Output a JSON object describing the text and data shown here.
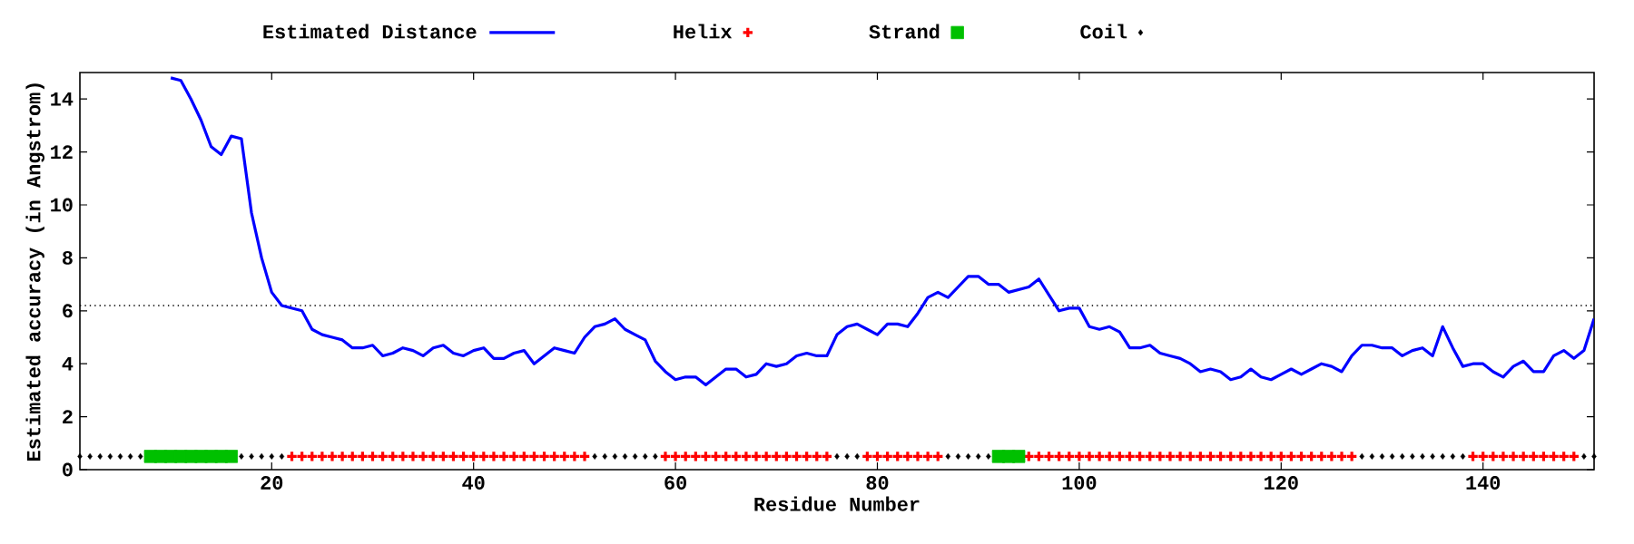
{
  "chart_data": {
    "type": "line",
    "xlabel": "Residue Number",
    "ylabel": "Estimated accuracy (in Angstrom)",
    "xlim": [
      1,
      151
    ],
    "ylim": [
      0,
      15
    ],
    "xticks": [
      20,
      40,
      60,
      80,
      100,
      120,
      140
    ],
    "yticks": [
      0,
      2,
      4,
      6,
      8,
      10,
      12,
      14
    ],
    "legend": "top",
    "grid": false,
    "ref_lines": [
      {
        "axis": "y",
        "value": 6.2,
        "color": "#000000",
        "line_style": "dotted"
      }
    ],
    "series": [
      {
        "name": "Estimated Distance",
        "color": "#0000ff",
        "line_style": "solid",
        "x": [
          10,
          11,
          12,
          13,
          14,
          15,
          16,
          17,
          18,
          19,
          20,
          21,
          22,
          23,
          24,
          25,
          26,
          27,
          28,
          29,
          30,
          31,
          32,
          33,
          34,
          35,
          36,
          37,
          38,
          39,
          40,
          41,
          42,
          43,
          44,
          45,
          46,
          47,
          48,
          49,
          50,
          51,
          52,
          53,
          54,
          55,
          56,
          57,
          58,
          59,
          60,
          61,
          62,
          63,
          64,
          65,
          66,
          67,
          68,
          69,
          70,
          71,
          72,
          73,
          74,
          75,
          76,
          77,
          78,
          79,
          80,
          81,
          82,
          83,
          84,
          85,
          86,
          87,
          88,
          89,
          90,
          91,
          92,
          93,
          94,
          95,
          96,
          97,
          98,
          99,
          100,
          101,
          102,
          103,
          104,
          105,
          106,
          107,
          108,
          109,
          110,
          111,
          112,
          113,
          114,
          115,
          116,
          117,
          118,
          119,
          120,
          121,
          122,
          123,
          124,
          125,
          126,
          127,
          128,
          129,
          130,
          131,
          132,
          133,
          134,
          135,
          136,
          137,
          138,
          139,
          140,
          141,
          142,
          143,
          144,
          145,
          146,
          147,
          148,
          149,
          150,
          151
        ],
        "values": [
          14.8,
          14.7,
          14.0,
          13.2,
          12.2,
          11.9,
          12.6,
          12.5,
          9.7,
          8.0,
          6.7,
          6.2,
          6.1,
          6.0,
          5.3,
          5.1,
          5.0,
          4.9,
          4.6,
          4.6,
          4.7,
          4.3,
          4.4,
          4.6,
          4.5,
          4.3,
          4.6,
          4.7,
          4.4,
          4.3,
          4.5,
          4.6,
          4.2,
          4.2,
          4.4,
          4.5,
          4.0,
          4.3,
          4.6,
          4.5,
          4.4,
          5.0,
          5.4,
          5.5,
          5.7,
          5.3,
          5.1,
          4.9,
          4.1,
          3.7,
          3.4,
          3.5,
          3.5,
          3.2,
          3.5,
          3.8,
          3.8,
          3.5,
          3.6,
          4.0,
          3.9,
          4.0,
          4.3,
          4.4,
          4.3,
          4.3,
          5.1,
          5.4,
          5.5,
          5.3,
          5.1,
          5.5,
          5.5,
          5.4,
          5.9,
          6.5,
          6.7,
          6.5,
          6.9,
          7.3,
          7.3,
          7.0,
          7.0,
          6.7,
          6.8,
          6.9,
          7.2,
          6.6,
          6.0,
          6.1,
          6.1,
          5.4,
          5.3,
          5.4,
          5.2,
          4.6,
          4.6,
          4.7,
          4.4,
          4.3,
          4.2,
          4.0,
          3.7,
          3.8,
          3.7,
          3.4,
          3.5,
          3.8,
          3.5,
          3.4,
          3.6,
          3.8,
          3.6,
          3.8,
          4.0,
          3.9,
          3.7,
          4.3,
          4.7,
          4.7,
          4.6,
          4.6,
          4.3,
          4.5,
          4.6,
          4.3,
          5.4,
          4.6,
          3.9,
          4.0,
          4.0,
          3.7,
          3.5,
          3.9,
          4.1,
          3.7,
          3.7,
          4.3,
          4.5,
          4.2,
          4.5,
          5.7
        ]
      },
      {
        "name": "Helix",
        "type": "scatter",
        "color": "#ff0000",
        "marker": "cross",
        "x": [
          22,
          23,
          24,
          25,
          26,
          27,
          28,
          29,
          30,
          31,
          32,
          33,
          34,
          35,
          36,
          37,
          38,
          39,
          40,
          41,
          42,
          43,
          44,
          45,
          46,
          47,
          48,
          49,
          50,
          51,
          59,
          60,
          61,
          62,
          63,
          64,
          65,
          66,
          67,
          68,
          69,
          70,
          71,
          72,
          73,
          74,
          75,
          79,
          80,
          81,
          82,
          83,
          84,
          85,
          86,
          95,
          96,
          97,
          98,
          99,
          100,
          101,
          102,
          103,
          104,
          105,
          106,
          107,
          108,
          109,
          110,
          111,
          112,
          113,
          114,
          115,
          116,
          117,
          118,
          119,
          120,
          121,
          122,
          123,
          124,
          125,
          126,
          127,
          139,
          140,
          141,
          142,
          143,
          144,
          145,
          146,
          147,
          148,
          149
        ],
        "values": [
          0.5,
          0.5,
          0.5,
          0.5,
          0.5,
          0.5,
          0.5,
          0.5,
          0.5,
          0.5,
          0.5,
          0.5,
          0.5,
          0.5,
          0.5,
          0.5,
          0.5,
          0.5,
          0.5,
          0.5,
          0.5,
          0.5,
          0.5,
          0.5,
          0.5,
          0.5,
          0.5,
          0.5,
          0.5,
          0.5,
          0.5,
          0.5,
          0.5,
          0.5,
          0.5,
          0.5,
          0.5,
          0.5,
          0.5,
          0.5,
          0.5,
          0.5,
          0.5,
          0.5,
          0.5,
          0.5,
          0.5,
          0.5,
          0.5,
          0.5,
          0.5,
          0.5,
          0.5,
          0.5,
          0.5,
          0.5,
          0.5,
          0.5,
          0.5,
          0.5,
          0.5,
          0.5,
          0.5,
          0.5,
          0.5,
          0.5,
          0.5,
          0.5,
          0.5,
          0.5,
          0.5,
          0.5,
          0.5,
          0.5,
          0.5,
          0.5,
          0.5,
          0.5,
          0.5,
          0.5,
          0.5,
          0.5,
          0.5,
          0.5,
          0.5,
          0.5,
          0.5,
          0.5,
          0.5,
          0.5,
          0.5,
          0.5,
          0.5,
          0.5,
          0.5,
          0.5,
          0.5,
          0.5,
          0.5
        ]
      },
      {
        "name": "Strand",
        "type": "scatter",
        "color": "#00c000",
        "marker": "square",
        "x": [
          8,
          9,
          10,
          11,
          12,
          13,
          14,
          15,
          16,
          92,
          93,
          94
        ],
        "values": [
          0.5,
          0.5,
          0.5,
          0.5,
          0.5,
          0.5,
          0.5,
          0.5,
          0.5,
          0.5,
          0.5,
          0.5
        ]
      },
      {
        "name": "Coil",
        "type": "scatter",
        "color": "#000000",
        "marker": "diamond",
        "x": [
          1,
          2,
          3,
          4,
          5,
          6,
          7,
          17,
          18,
          19,
          20,
          21,
          52,
          53,
          54,
          55,
          56,
          57,
          58,
          76,
          77,
          78,
          87,
          88,
          89,
          90,
          91,
          128,
          129,
          130,
          131,
          132,
          133,
          134,
          135,
          136,
          137,
          138,
          150,
          151
        ],
        "values": [
          0.5,
          0.5,
          0.5,
          0.5,
          0.5,
          0.5,
          0.5,
          0.5,
          0.5,
          0.5,
          0.5,
          0.5,
          0.5,
          0.5,
          0.5,
          0.5,
          0.5,
          0.5,
          0.5,
          0.5,
          0.5,
          0.5,
          0.5,
          0.5,
          0.5,
          0.5,
          0.5,
          0.5,
          0.5,
          0.5,
          0.5,
          0.5,
          0.5,
          0.5,
          0.5,
          0.5,
          0.5,
          0.5,
          0.5,
          0.5
        ]
      }
    ]
  }
}
